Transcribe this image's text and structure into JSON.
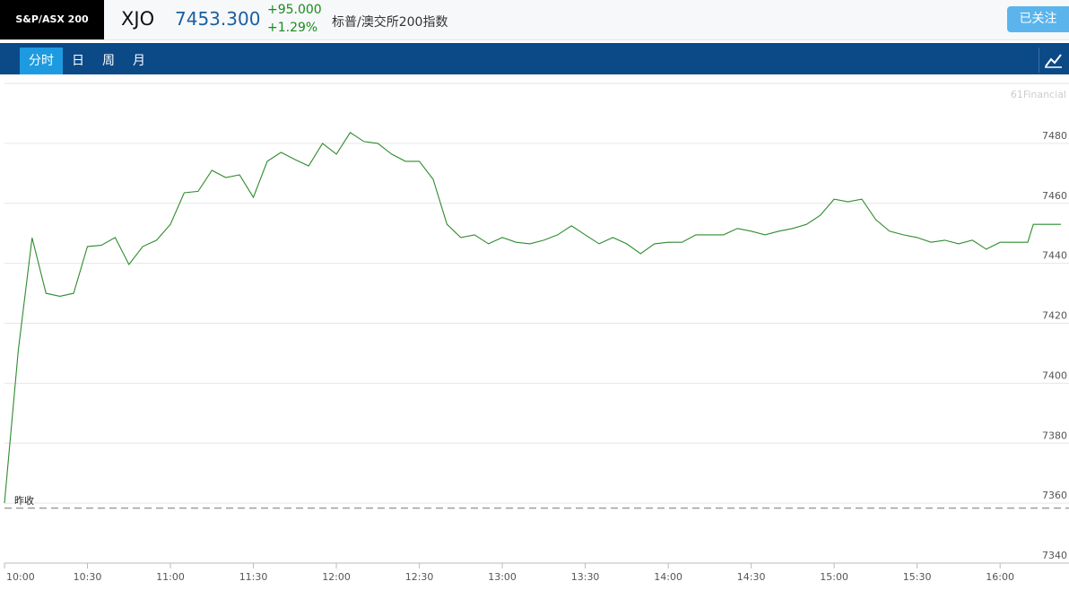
{
  "header": {
    "ticker_box": "S&P/ASX 200",
    "symbol": "XJO",
    "price": "7453.300",
    "change": "+95.000",
    "change_pct": "+1.29%",
    "name": "标普/澳交所200指数",
    "follow_button": "已关注"
  },
  "tabs": [
    "分时",
    "日",
    "周",
    "月"
  ],
  "watermark": "61Financial",
  "chart_data": {
    "type": "line",
    "color": "#2e8b2e",
    "grid": true,
    "x": [
      "10:00",
      "10:05",
      "10:10",
      "10:15",
      "10:20",
      "10:25",
      "10:30",
      "10:35",
      "10:40",
      "10:45",
      "10:50",
      "10:55",
      "11:00",
      "11:05",
      "11:10",
      "11:15",
      "11:20",
      "11:25",
      "11:30",
      "11:35",
      "11:40",
      "11:45",
      "11:50",
      "11:55",
      "12:00",
      "12:05",
      "12:10",
      "12:15",
      "12:20",
      "12:25",
      "12:30",
      "12:35",
      "12:40",
      "12:45",
      "12:50",
      "12:55",
      "13:00",
      "13:05",
      "13:10",
      "13:15",
      "13:20",
      "13:25",
      "13:30",
      "13:35",
      "13:40",
      "13:45",
      "13:50",
      "13:55",
      "14:00",
      "14:05",
      "14:10",
      "14:15",
      "14:20",
      "14:25",
      "14:30",
      "14:35",
      "14:40",
      "14:45",
      "14:50",
      "14:55",
      "15:00",
      "15:05",
      "15:10",
      "15:15",
      "15:20",
      "15:25",
      "15:30",
      "15:35",
      "15:40",
      "15:45",
      "15:50",
      "15:55",
      "16:00",
      "16:05",
      "16:10",
      "16:12",
      "16:15",
      "16:20",
      "16:22"
    ],
    "values": [
      7360,
      7411,
      7448.5,
      7430,
      7429,
      7430,
      7445.6,
      7446,
      7448.6,
      7439.6,
      7445.6,
      7447.7,
      7453,
      7463.5,
      7464,
      7471,
      7468.6,
      7469.5,
      7462,
      7474,
      7477,
      7474.6,
      7472.5,
      7480,
      7476.4,
      7483.6,
      7480.6,
      7480,
      7476.4,
      7474,
      7474,
      7468,
      7453,
      7448.6,
      7449.5,
      7446.5,
      7448.6,
      7447,
      7446.5,
      7447.7,
      7449.5,
      7452.5,
      7449.5,
      7446.5,
      7448.6,
      7446.5,
      7443.2,
      7446.5,
      7447,
      7447,
      7449.5,
      7449.5,
      7449.5,
      7451.6,
      7450.7,
      7449.5,
      7450.7,
      7451.6,
      7453,
      7456,
      7461.4,
      7460.5,
      7461.4,
      7454.6,
      7450.7,
      7449.5,
      7448.6,
      7447,
      7447.7,
      7446.5,
      7447.7,
      7444.7,
      7447,
      7447,
      7447,
      7453,
      7453,
      7453,
      7453
    ],
    "xlim": [
      "10:00",
      "16:22"
    ],
    "xticks": [
      "10:00",
      "10:30",
      "11:00",
      "11:30",
      "12:00",
      "12:30",
      "13:00",
      "13:30",
      "14:00",
      "14:30",
      "15:00",
      "15:30",
      "16:00"
    ],
    "ylim": [
      7340,
      7500
    ],
    "yticks": [
      7340,
      7360,
      7380,
      7400,
      7420,
      7440,
      7460,
      7480
    ],
    "reference": {
      "label": "昨收",
      "value": 7358.3
    }
  }
}
